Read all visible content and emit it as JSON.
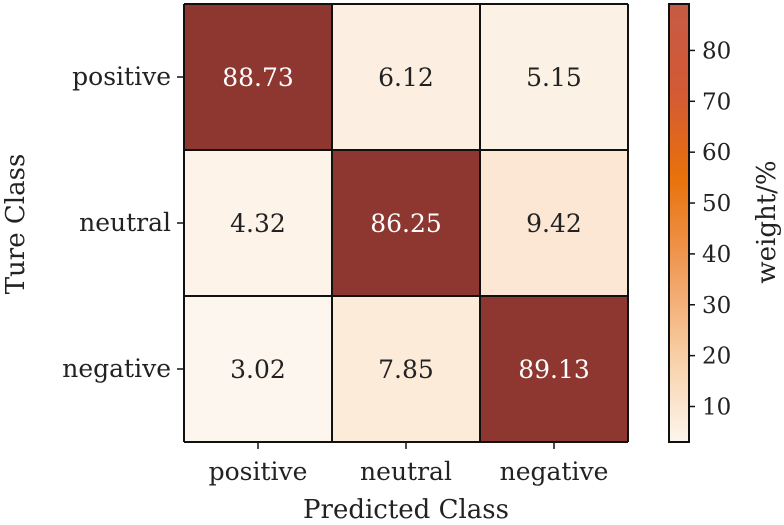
{
  "chart_data": {
    "type": "heatmap",
    "title": "",
    "xlabel": "Predicted Class",
    "ylabel": "Ture Class",
    "x_categories": [
      "positive",
      "neutral",
      "negative"
    ],
    "y_categories": [
      "positive",
      "neutral",
      "negative"
    ],
    "values": [
      [
        88.73,
        6.12,
        5.15
      ],
      [
        4.32,
        86.25,
        9.42
      ],
      [
        3.02,
        7.85,
        89.13
      ]
    ],
    "value_labels": [
      [
        "88.73",
        "6.12",
        "5.15"
      ],
      [
        "4.32",
        "86.25",
        "9.42"
      ],
      [
        "3.02",
        "7.85",
        "89.13"
      ]
    ],
    "colorbar": {
      "label": "weight/%",
      "range": [
        3.02,
        89.13
      ],
      "ticks": [
        10,
        20,
        30,
        40,
        50,
        60,
        70,
        80
      ],
      "tick_labels": [
        "10",
        "20",
        "30",
        "40",
        "50",
        "60",
        "70",
        "80"
      ]
    },
    "colors": {
      "scale": [
        "#fdf6ee",
        "#f8cea4",
        "#f09b5a",
        "#e8720b",
        "#d35a35",
        "#c55b44"
      ],
      "cell_high": "#8e3731",
      "text_dark": "#222222",
      "text_light": "#ffffff",
      "grid": "#111111"
    }
  }
}
